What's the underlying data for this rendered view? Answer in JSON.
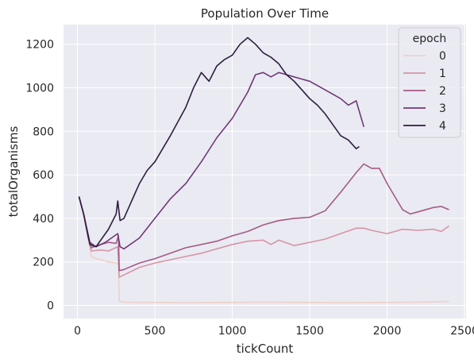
{
  "chart_data": {
    "type": "line",
    "title": "Population Over Time",
    "xlabel": "tickCount",
    "ylabel": "totalOrganisms",
    "xlim": [
      -90,
      2510
    ],
    "ylim": [
      -60,
      1290
    ],
    "xticks": [
      0,
      500,
      1000,
      1500,
      2000,
      2500
    ],
    "yticks": [
      0,
      200,
      400,
      600,
      800,
      1000,
      1200
    ],
    "grid": true,
    "background": "#eaeaf2",
    "legend": {
      "title": "epoch",
      "placement": "top-right"
    },
    "series": [
      {
        "name": "0",
        "color": "#efd0c9",
        "points": [
          [
            10,
            500
          ],
          [
            30,
            450
          ],
          [
            50,
            400
          ],
          [
            70,
            300
          ],
          [
            90,
            225
          ],
          [
            120,
            215
          ],
          [
            150,
            210
          ],
          [
            200,
            200
          ],
          [
            250,
            195
          ],
          [
            265,
            190
          ],
          [
            270,
            20
          ],
          [
            300,
            15
          ],
          [
            400,
            14
          ],
          [
            500,
            14
          ],
          [
            700,
            13
          ],
          [
            1000,
            14
          ],
          [
            1200,
            15
          ],
          [
            1500,
            14
          ],
          [
            1700,
            13
          ],
          [
            2000,
            14
          ],
          [
            2200,
            15
          ],
          [
            2400,
            18
          ]
        ]
      },
      {
        "name": "1",
        "color": "#d595a5",
        "points": [
          [
            10,
            500
          ],
          [
            40,
            420
          ],
          [
            70,
            310
          ],
          [
            90,
            250
          ],
          [
            150,
            255
          ],
          [
            200,
            250
          ],
          [
            260,
            270
          ],
          [
            270,
            130
          ],
          [
            300,
            140
          ],
          [
            400,
            175
          ],
          [
            500,
            195
          ],
          [
            600,
            210
          ],
          [
            700,
            225
          ],
          [
            800,
            240
          ],
          [
            900,
            260
          ],
          [
            1000,
            280
          ],
          [
            1100,
            295
          ],
          [
            1200,
            300
          ],
          [
            1250,
            280
          ],
          [
            1300,
            300
          ],
          [
            1400,
            275
          ],
          [
            1500,
            290
          ],
          [
            1600,
            305
          ],
          [
            1700,
            330
          ],
          [
            1800,
            355
          ],
          [
            1850,
            355
          ],
          [
            1900,
            345
          ],
          [
            2000,
            330
          ],
          [
            2100,
            350
          ],
          [
            2200,
            345
          ],
          [
            2300,
            350
          ],
          [
            2350,
            340
          ],
          [
            2400,
            365
          ]
        ]
      },
      {
        "name": "2",
        "color": "#a45b86",
        "points": [
          [
            10,
            500
          ],
          [
            40,
            420
          ],
          [
            70,
            310
          ],
          [
            90,
            265
          ],
          [
            150,
            280
          ],
          [
            200,
            290
          ],
          [
            250,
            285
          ],
          [
            265,
            320
          ],
          [
            270,
            160
          ],
          [
            300,
            165
          ],
          [
            400,
            195
          ],
          [
            500,
            215
          ],
          [
            600,
            240
          ],
          [
            700,
            265
          ],
          [
            800,
            280
          ],
          [
            900,
            295
          ],
          [
            1000,
            320
          ],
          [
            1100,
            340
          ],
          [
            1200,
            370
          ],
          [
            1300,
            390
          ],
          [
            1400,
            400
          ],
          [
            1500,
            405
          ],
          [
            1600,
            435
          ],
          [
            1700,
            520
          ],
          [
            1800,
            610
          ],
          [
            1850,
            650
          ],
          [
            1900,
            630
          ],
          [
            1950,
            630
          ],
          [
            2000,
            560
          ],
          [
            2050,
            500
          ],
          [
            2100,
            440
          ],
          [
            2150,
            420
          ],
          [
            2200,
            430
          ],
          [
            2300,
            450
          ],
          [
            2350,
            455
          ],
          [
            2400,
            440
          ]
        ]
      },
      {
        "name": "3",
        "color": "#6f3978",
        "points": [
          [
            10,
            500
          ],
          [
            40,
            420
          ],
          [
            80,
            290
          ],
          [
            120,
            270
          ],
          [
            180,
            290
          ],
          [
            220,
            310
          ],
          [
            260,
            330
          ],
          [
            275,
            270
          ],
          [
            300,
            260
          ],
          [
            400,
            310
          ],
          [
            500,
            400
          ],
          [
            600,
            490
          ],
          [
            700,
            560
          ],
          [
            800,
            660
          ],
          [
            900,
            770
          ],
          [
            1000,
            860
          ],
          [
            1100,
            980
          ],
          [
            1150,
            1060
          ],
          [
            1200,
            1070
          ],
          [
            1250,
            1050
          ],
          [
            1300,
            1070
          ],
          [
            1350,
            1060
          ],
          [
            1400,
            1050
          ],
          [
            1500,
            1030
          ],
          [
            1600,
            990
          ],
          [
            1700,
            950
          ],
          [
            1750,
            920
          ],
          [
            1800,
            940
          ],
          [
            1850,
            820
          ]
        ]
      },
      {
        "name": "4",
        "color": "#2d1e3e",
        "points": [
          [
            10,
            500
          ],
          [
            40,
            420
          ],
          [
            80,
            280
          ],
          [
            120,
            270
          ],
          [
            200,
            350
          ],
          [
            250,
            420
          ],
          [
            260,
            480
          ],
          [
            275,
            390
          ],
          [
            300,
            400
          ],
          [
            350,
            480
          ],
          [
            400,
            560
          ],
          [
            450,
            620
          ],
          [
            500,
            660
          ],
          [
            600,
            780
          ],
          [
            700,
            910
          ],
          [
            750,
            1000
          ],
          [
            800,
            1070
          ],
          [
            850,
            1030
          ],
          [
            900,
            1100
          ],
          [
            950,
            1130
          ],
          [
            1000,
            1150
          ],
          [
            1050,
            1200
          ],
          [
            1100,
            1230
          ],
          [
            1150,
            1200
          ],
          [
            1200,
            1160
          ],
          [
            1250,
            1140
          ],
          [
            1300,
            1110
          ],
          [
            1350,
            1060
          ],
          [
            1400,
            1030
          ],
          [
            1450,
            990
          ],
          [
            1500,
            950
          ],
          [
            1550,
            920
          ],
          [
            1600,
            880
          ],
          [
            1650,
            830
          ],
          [
            1700,
            780
          ],
          [
            1750,
            760
          ],
          [
            1800,
            720
          ],
          [
            1820,
            730
          ]
        ]
      }
    ]
  }
}
